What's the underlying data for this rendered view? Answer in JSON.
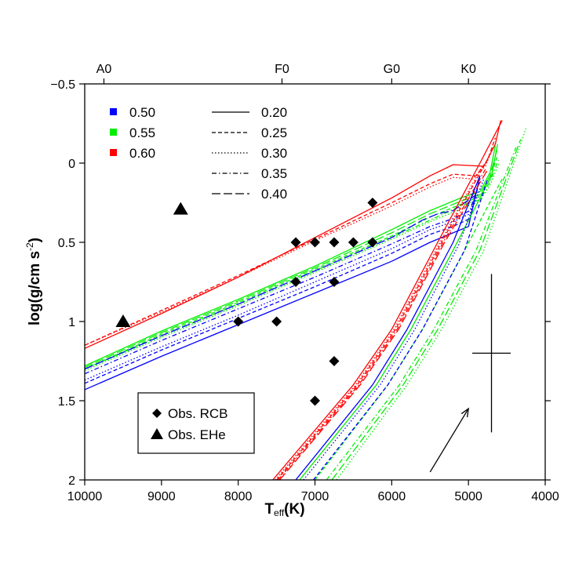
{
  "chart_data": {
    "type": "line",
    "xlabel": {
      "main": "T",
      "sub": "eff",
      "tail": "(K)"
    },
    "ylabel": {
      "main": "log(g/cm  s",
      "sup": "-2",
      "tail": ")"
    },
    "xlim": [
      10000,
      4000
    ],
    "ylim": [
      2,
      -0.5
    ],
    "x_ticks": [
      10000,
      9000,
      8000,
      7000,
      6000,
      5000,
      4000
    ],
    "x_tick_labels": [
      "10000",
      "9000",
      "8000",
      "7000",
      "6000",
      "5000",
      "4000"
    ],
    "y_ticks": [
      -0.5,
      0,
      0.5,
      1,
      1.5,
      2
    ],
    "y_tick_labels": [
      "−0.5",
      "0",
      "0.5",
      "1",
      "1.5",
      "2"
    ],
    "spectral_ticks": [
      {
        "label": "A0",
        "teff": 9750
      },
      {
        "label": "F0",
        "teff": 7430
      },
      {
        "label": "G0",
        "teff": 6000
      },
      {
        "label": "K0",
        "teff": 5000
      }
    ],
    "mass_legend": [
      {
        "label": "0.50",
        "color": "#0000ff"
      },
      {
        "label": "0.55",
        "color": "#00ee00"
      },
      {
        "label": "0.60",
        "color": "#ff0000"
      }
    ],
    "mass_legend_position": "top-left",
    "style_legend": [
      {
        "label": "0.20",
        "dash": "solid"
      },
      {
        "label": "0.25",
        "dash": "short-dash"
      },
      {
        "label": "0.30",
        "dash": "dotted"
      },
      {
        "label": "0.35",
        "dash": "dash-dot"
      },
      {
        "label": "0.40",
        "dash": "long-dash"
      }
    ],
    "obs_legend": [
      {
        "label": "Obs. RCB",
        "marker": "diamond"
      },
      {
        "label": "Obs. EHe",
        "marker": "triangle"
      }
    ],
    "obs_legend_position": "bottom-left",
    "obs_rcb": [
      [
        6250,
        0.25
      ],
      [
        7250,
        0.5
      ],
      [
        7000,
        0.5
      ],
      [
        6750,
        0.5
      ],
      [
        6500,
        0.5
      ],
      [
        6250,
        0.5
      ],
      [
        7250,
        0.75
      ],
      [
        6750,
        0.75
      ],
      [
        8000,
        1.0
      ],
      [
        7500,
        1.0
      ],
      [
        6750,
        1.25
      ],
      [
        7000,
        1.5
      ]
    ],
    "obs_ehe": [
      [
        8750,
        0.29
      ],
      [
        9500,
        1.0
      ]
    ],
    "error_bar": {
      "teff": 4700,
      "logg": 1.2,
      "teff_err": 250,
      "logg_err": 0.5
    },
    "arrow": {
      "from": [
        5500,
        1.95
      ],
      "to": [
        5000,
        1.55
      ]
    },
    "tracks": [
      {
        "mass": "0.60",
        "mu": "0.20",
        "points": [
          [
            10000,
            1.17
          ],
          [
            9000,
            0.95
          ],
          [
            8000,
            0.72
          ],
          [
            7000,
            0.47
          ],
          [
            6000,
            0.22
          ],
          [
            5500,
            0.08
          ],
          [
            5200,
            0.01
          ],
          [
            4800,
            0.02
          ],
          [
            4650,
            -0.12
          ],
          [
            4580,
            -0.27
          ]
        ]
      },
      {
        "mass": "0.60",
        "mu": "0.25",
        "points": [
          [
            10000,
            1.15
          ],
          [
            9000,
            0.93
          ],
          [
            8000,
            0.71
          ],
          [
            7000,
            0.48
          ],
          [
            6000,
            0.25
          ],
          [
            5500,
            0.13
          ],
          [
            5200,
            0.07
          ],
          [
            4900,
            0.08
          ],
          [
            4750,
            -0.02
          ],
          [
            4650,
            -0.16
          ]
        ]
      },
      {
        "mass": "0.60",
        "mu": "0.30",
        "points": [
          [
            10000,
            1.15
          ],
          [
            9000,
            0.94
          ],
          [
            8000,
            0.72
          ],
          [
            7000,
            0.49
          ],
          [
            6000,
            0.27
          ],
          [
            5500,
            0.15
          ],
          [
            5200,
            0.09
          ],
          [
            4950,
            0.1
          ],
          [
            4780,
            0.02
          ],
          [
            4680,
            -0.1
          ]
        ]
      },
      {
        "mass": "0.55",
        "mu": "0.20",
        "points": [
          [
            10000,
            1.28
          ],
          [
            9000,
            1.06
          ],
          [
            8000,
            0.86
          ],
          [
            7000,
            0.65
          ],
          [
            6000,
            0.42
          ],
          [
            5500,
            0.3
          ],
          [
            5100,
            0.22
          ],
          [
            4850,
            0.18
          ],
          [
            4720,
            0.06
          ],
          [
            4650,
            -0.11
          ]
        ]
      },
      {
        "mass": "0.55",
        "mu": "0.25",
        "points": [
          [
            10000,
            1.3
          ],
          [
            9000,
            1.08
          ],
          [
            8000,
            0.88
          ],
          [
            7000,
            0.67
          ],
          [
            6000,
            0.46
          ],
          [
            5500,
            0.34
          ],
          [
            5100,
            0.26
          ],
          [
            4850,
            0.21
          ],
          [
            4720,
            0.1
          ],
          [
            4620,
            -0.05
          ]
        ]
      },
      {
        "mass": "0.55",
        "mu": "0.30",
        "points": [
          [
            10000,
            1.31
          ],
          [
            9000,
            1.1
          ],
          [
            8000,
            0.9
          ],
          [
            7000,
            0.69
          ],
          [
            6000,
            0.48
          ],
          [
            5500,
            0.37
          ],
          [
            5100,
            0.29
          ],
          [
            4850,
            0.24
          ],
          [
            4720,
            0.14
          ],
          [
            4600,
            0.0
          ]
        ]
      },
      {
        "mass": "0.55",
        "mu": "0.35",
        "points": [
          [
            10000,
            1.3
          ],
          [
            9000,
            1.09
          ],
          [
            8000,
            0.89
          ],
          [
            7000,
            0.68
          ],
          [
            6000,
            0.47
          ],
          [
            5500,
            0.36
          ],
          [
            5100,
            0.27
          ],
          [
            4850,
            0.23
          ],
          [
            4720,
            0.12
          ],
          [
            4610,
            -0.02
          ]
        ]
      },
      {
        "mass": "0.55",
        "mu": "0.40",
        "points": [
          [
            10000,
            1.29
          ],
          [
            9000,
            1.07
          ],
          [
            8000,
            0.87
          ],
          [
            7000,
            0.66
          ],
          [
            6000,
            0.44
          ],
          [
            5500,
            0.32
          ],
          [
            5100,
            0.24
          ],
          [
            4850,
            0.2
          ],
          [
            4720,
            0.08
          ],
          [
            4630,
            -0.08
          ]
        ]
      },
      {
        "mass": "0.50",
        "mu": "0.20",
        "points": [
          [
            10000,
            1.43
          ],
          [
            9000,
            1.22
          ],
          [
            8000,
            1.02
          ],
          [
            7000,
            0.82
          ],
          [
            6000,
            0.62
          ],
          [
            5500,
            0.5
          ],
          [
            5250,
            0.45
          ],
          [
            5000,
            0.4
          ],
          [
            4850,
            0.08
          ]
        ]
      },
      {
        "mass": "0.50",
        "mu": "0.25",
        "points": [
          [
            10000,
            1.39
          ],
          [
            9000,
            1.18
          ],
          [
            8000,
            0.98
          ],
          [
            7000,
            0.78
          ],
          [
            6000,
            0.57
          ],
          [
            5500,
            0.45
          ],
          [
            5200,
            0.4
          ],
          [
            4980,
            0.35
          ],
          [
            4850,
            0.1
          ]
        ]
      },
      {
        "mass": "0.50",
        "mu": "0.30",
        "points": [
          [
            10000,
            1.37
          ],
          [
            9000,
            1.16
          ],
          [
            8000,
            0.96
          ],
          [
            7000,
            0.75
          ],
          [
            6000,
            0.54
          ],
          [
            5500,
            0.42
          ],
          [
            5200,
            0.37
          ],
          [
            4980,
            0.32
          ],
          [
            4860,
            0.12
          ]
        ]
      },
      {
        "mass": "0.50",
        "mu": "0.35",
        "points": [
          [
            10000,
            1.33
          ],
          [
            9000,
            1.12
          ],
          [
            8000,
            0.92
          ],
          [
            7000,
            0.72
          ],
          [
            6000,
            0.51
          ],
          [
            5500,
            0.4
          ],
          [
            5200,
            0.35
          ],
          [
            4980,
            0.3
          ],
          [
            4870,
            0.14
          ]
        ]
      },
      {
        "mass": "0.50",
        "mu": "0.40",
        "points": [
          [
            10000,
            1.3
          ],
          [
            9000,
            1.09
          ],
          [
            8000,
            0.89
          ],
          [
            7000,
            0.68
          ],
          [
            6000,
            0.47
          ],
          [
            5600,
            0.36
          ],
          [
            5400,
            0.32
          ],
          [
            5200,
            0.3
          ],
          [
            4900,
            0.2
          ]
        ]
      },
      {
        "mass": "0.60",
        "mu": "0.20",
        "points": [
          [
            7550,
            2.0
          ],
          [
            6500,
            1.4
          ],
          [
            6000,
            1.05
          ],
          [
            5400,
            0.5
          ],
          [
            4850,
            0.0
          ],
          [
            4560,
            -0.27
          ]
        ]
      },
      {
        "mass": "0.60",
        "mu": "0.25",
        "points": [
          [
            7500,
            2.0
          ],
          [
            6450,
            1.4
          ],
          [
            5950,
            1.05
          ],
          [
            5350,
            0.5
          ],
          [
            4800,
            0.02
          ]
        ]
      },
      {
        "mass": "0.60",
        "mu": "0.30",
        "points": [
          [
            7520,
            2.0
          ],
          [
            6470,
            1.4
          ],
          [
            5970,
            1.05
          ],
          [
            5370,
            0.5
          ],
          [
            4820,
            0.02
          ]
        ]
      },
      {
        "mass": "0.60",
        "mu": "0.35",
        "points": [
          [
            7480,
            2.0
          ],
          [
            6430,
            1.4
          ],
          [
            5930,
            1.05
          ],
          [
            5330,
            0.5
          ],
          [
            4780,
            0.04
          ]
        ]
      },
      {
        "mass": "0.60",
        "mu": "0.40",
        "points": [
          [
            7460,
            2.0
          ],
          [
            6410,
            1.4
          ],
          [
            5910,
            1.05
          ],
          [
            5310,
            0.5
          ],
          [
            4760,
            0.05
          ]
        ]
      },
      {
        "mass": "0.55",
        "mu": "0.20",
        "points": [
          [
            7200,
            2.0
          ],
          [
            6200,
            1.4
          ],
          [
            5750,
            1.05
          ],
          [
            5200,
            0.55
          ],
          [
            4700,
            0.08
          ],
          [
            4620,
            -0.12
          ]
        ]
      },
      {
        "mass": "0.55",
        "mu": "0.25",
        "points": [
          [
            7000,
            2.0
          ],
          [
            6050,
            1.4
          ],
          [
            5600,
            1.05
          ],
          [
            5050,
            0.55
          ],
          [
            4560,
            0.1
          ]
        ]
      },
      {
        "mass": "0.55",
        "mu": "0.30",
        "points": [
          [
            6720,
            2.0
          ],
          [
            5800,
            1.4
          ],
          [
            5350,
            1.05
          ],
          [
            4800,
            0.55
          ],
          [
            4250,
            -0.22
          ]
        ]
      },
      {
        "mass": "0.55",
        "mu": "0.35",
        "points": [
          [
            6850,
            2.0
          ],
          [
            5900,
            1.4
          ],
          [
            5450,
            1.05
          ],
          [
            4900,
            0.55
          ],
          [
            4380,
            -0.1
          ]
        ]
      },
      {
        "mass": "0.55",
        "mu": "0.40",
        "points": [
          [
            6780,
            2.0
          ],
          [
            5850,
            1.4
          ],
          [
            5400,
            1.05
          ],
          [
            4850,
            0.55
          ],
          [
            4320,
            -0.15
          ]
        ]
      },
      {
        "mass": "0.50",
        "mu": "0.20",
        "points": [
          [
            7250,
            2.0
          ],
          [
            6250,
            1.4
          ],
          [
            5800,
            1.05
          ],
          [
            5200,
            0.5
          ],
          [
            4850,
            0.08
          ]
        ]
      },
      {
        "mass": "0.50",
        "mu": "0.25",
        "points": [
          [
            7020,
            2.0
          ],
          [
            6050,
            1.4
          ],
          [
            5600,
            1.05
          ],
          [
            5050,
            0.55
          ],
          [
            4750,
            0.1
          ]
        ]
      },
      {
        "mass": "0.50",
        "mu": "0.30",
        "points": [
          [
            7150,
            2.0
          ],
          [
            6150,
            1.4
          ],
          [
            5700,
            1.05
          ],
          [
            5130,
            0.52
          ],
          [
            4800,
            0.1
          ]
        ]
      }
    ]
  }
}
